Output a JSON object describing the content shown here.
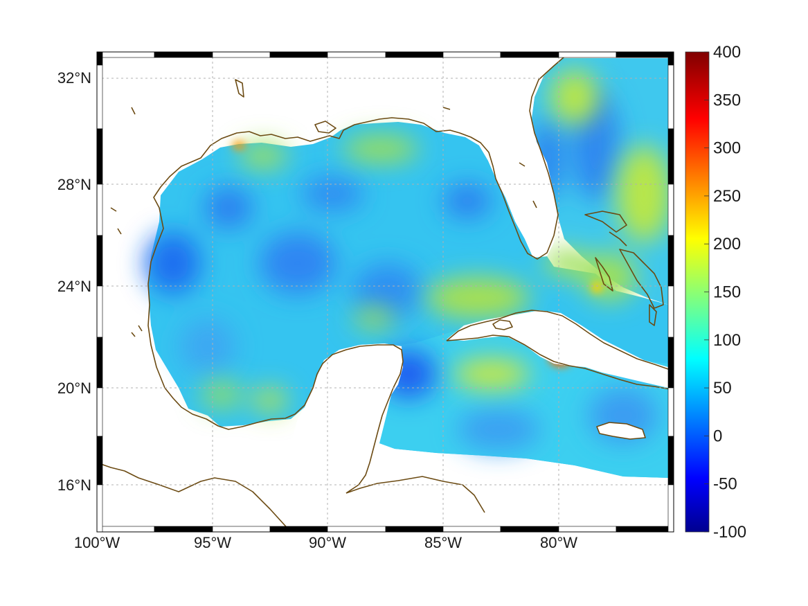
{
  "map": {
    "lon_range": [
      -100,
      -75
    ],
    "lat_range": [
      14.2,
      32.9
    ],
    "grid": "dotted",
    "x_tick_labels": [
      {
        "lon": -100,
        "label": "100°W"
      },
      {
        "lon": -95,
        "label": "95°W"
      },
      {
        "lon": -90,
        "label": "90°W"
      },
      {
        "lon": -85,
        "label": "85°W"
      },
      {
        "lon": -80,
        "label": "80°W"
      }
    ],
    "y_tick_labels": [
      {
        "lat": 32,
        "label": "32°N"
      },
      {
        "lat": 28,
        "label": "28°N"
      },
      {
        "lat": 24,
        "label": "24°N"
      },
      {
        "lat": 20,
        "label": "20°N"
      },
      {
        "lat": 16,
        "label": "16°N"
      }
    ],
    "coastline_color": "#6b4a12",
    "field_background_color": "#33c6f0",
    "hotspots": [
      {
        "lon": -79.9,
        "lat": 21.2,
        "value": 330
      },
      {
        "lon": -94.0,
        "lat": 29.6,
        "value": 260
      },
      {
        "lon": -82.5,
        "lat": 22.5,
        "value": 230
      },
      {
        "lon": -78.5,
        "lat": 24.0,
        "value": 200
      },
      {
        "lon": -80.0,
        "lat": 31.8,
        "value": 190
      }
    ]
  },
  "colorbar": {
    "min": -100,
    "max": 400,
    "tick_labels": [
      "400",
      "350",
      "300",
      "250",
      "200",
      "150",
      "100",
      "50",
      "0",
      "-50",
      "-100"
    ],
    "colormap": "jet",
    "colors": [
      "#00008f",
      "#0000ff",
      "#00ffff",
      "#ffff00",
      "#ff0000",
      "#800000"
    ]
  }
}
